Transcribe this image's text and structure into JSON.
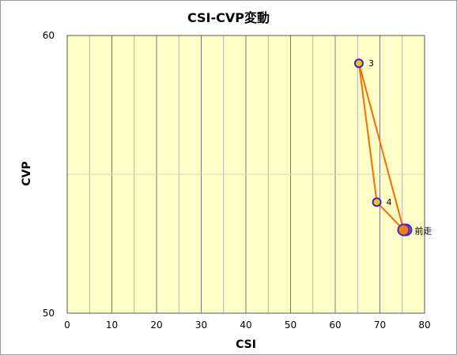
{
  "chart_data": {
    "type": "scatter",
    "title": "CSI-CVP変動",
    "xlabel": "CSI",
    "ylabel": "CVP",
    "xlim": [
      0,
      80
    ],
    "ylim": [
      50,
      60
    ],
    "x_ticks": [
      "0",
      "10",
      "20",
      "30",
      "40",
      "50",
      "60",
      "70",
      "80"
    ],
    "y_ticks": [
      "50",
      "60"
    ],
    "grid": true,
    "plot_background": "#ffffc8",
    "line_color": "#ff6a00",
    "points": [
      {
        "x": 65.3,
        "y": 59.0,
        "label": "3",
        "kind": "normal"
      },
      {
        "x": 69.3,
        "y": 54.0,
        "label": "4",
        "kind": "normal"
      },
      {
        "x": 75.3,
        "y": 53.0,
        "label": "前走",
        "kind": "previous"
      }
    ],
    "path": [
      {
        "x": 75.3,
        "y": 53.0
      },
      {
        "x": 65.3,
        "y": 59.0
      },
      {
        "x": 69.3,
        "y": 54.0
      },
      {
        "x": 75.3,
        "y": 53.0
      }
    ]
  }
}
